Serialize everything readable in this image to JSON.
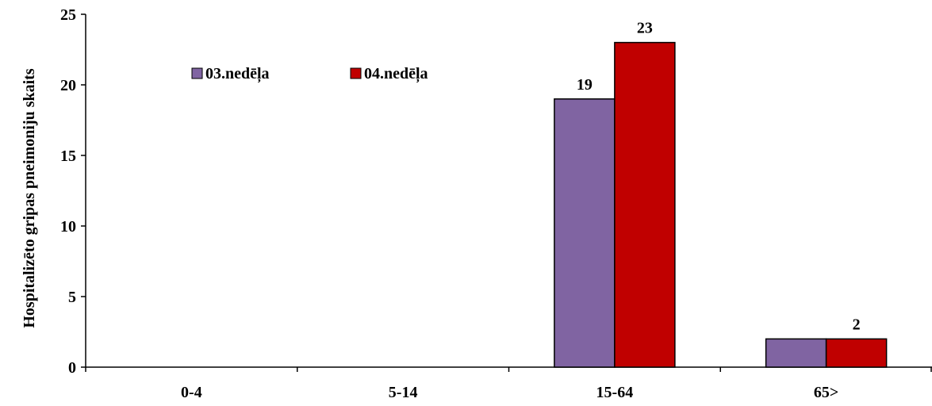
{
  "chart_data": {
    "type": "bar",
    "ylabel": "Hospitalizēto gripas pneimoniju  skaits",
    "xlabel": "",
    "ylim": [
      0,
      25
    ],
    "yticks": [
      0,
      5,
      10,
      15,
      20,
      25
    ],
    "categories": [
      "0-4",
      "5-14",
      "15-64",
      "65>"
    ],
    "series": [
      {
        "name": "03.nedēļa",
        "color": "#8064A2",
        "values": [
          0,
          0,
          19,
          2
        ],
        "labels": [
          "",
          "",
          "19",
          ""
        ]
      },
      {
        "name": "04.nedēļa",
        "color": "#C00000",
        "values": [
          0,
          0,
          23,
          2
        ],
        "labels": [
          "",
          "",
          "23",
          "2"
        ]
      }
    ],
    "legend_position": "top-left",
    "grid": false
  }
}
